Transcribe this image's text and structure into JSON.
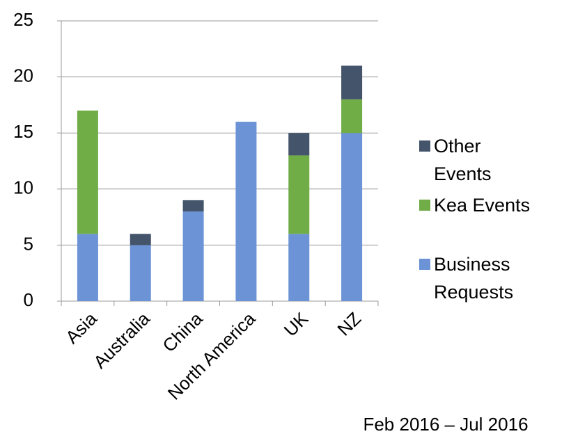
{
  "chart_data": {
    "type": "stacked_bar",
    "categories": [
      "Asia",
      "Australia",
      "China",
      "North America",
      "UK",
      "NZ"
    ],
    "series": [
      {
        "name": "Business Requests",
        "color": "#6b93d6",
        "values": [
          6,
          5,
          8,
          16,
          6,
          15
        ]
      },
      {
        "name": "Kea Events",
        "color": "#70ad47",
        "values": [
          11,
          0,
          0,
          0,
          7,
          3
        ]
      },
      {
        "name": "Other Events",
        "color": "#44546a",
        "values": [
          0,
          1,
          1,
          0,
          2,
          3
        ]
      }
    ],
    "ylim": [
      0,
      25
    ],
    "yticks": [
      0,
      5,
      10,
      15,
      20,
      25
    ],
    "grid": true,
    "legend": "right",
    "annotation": "Feb 2016 – Jul 2016"
  }
}
